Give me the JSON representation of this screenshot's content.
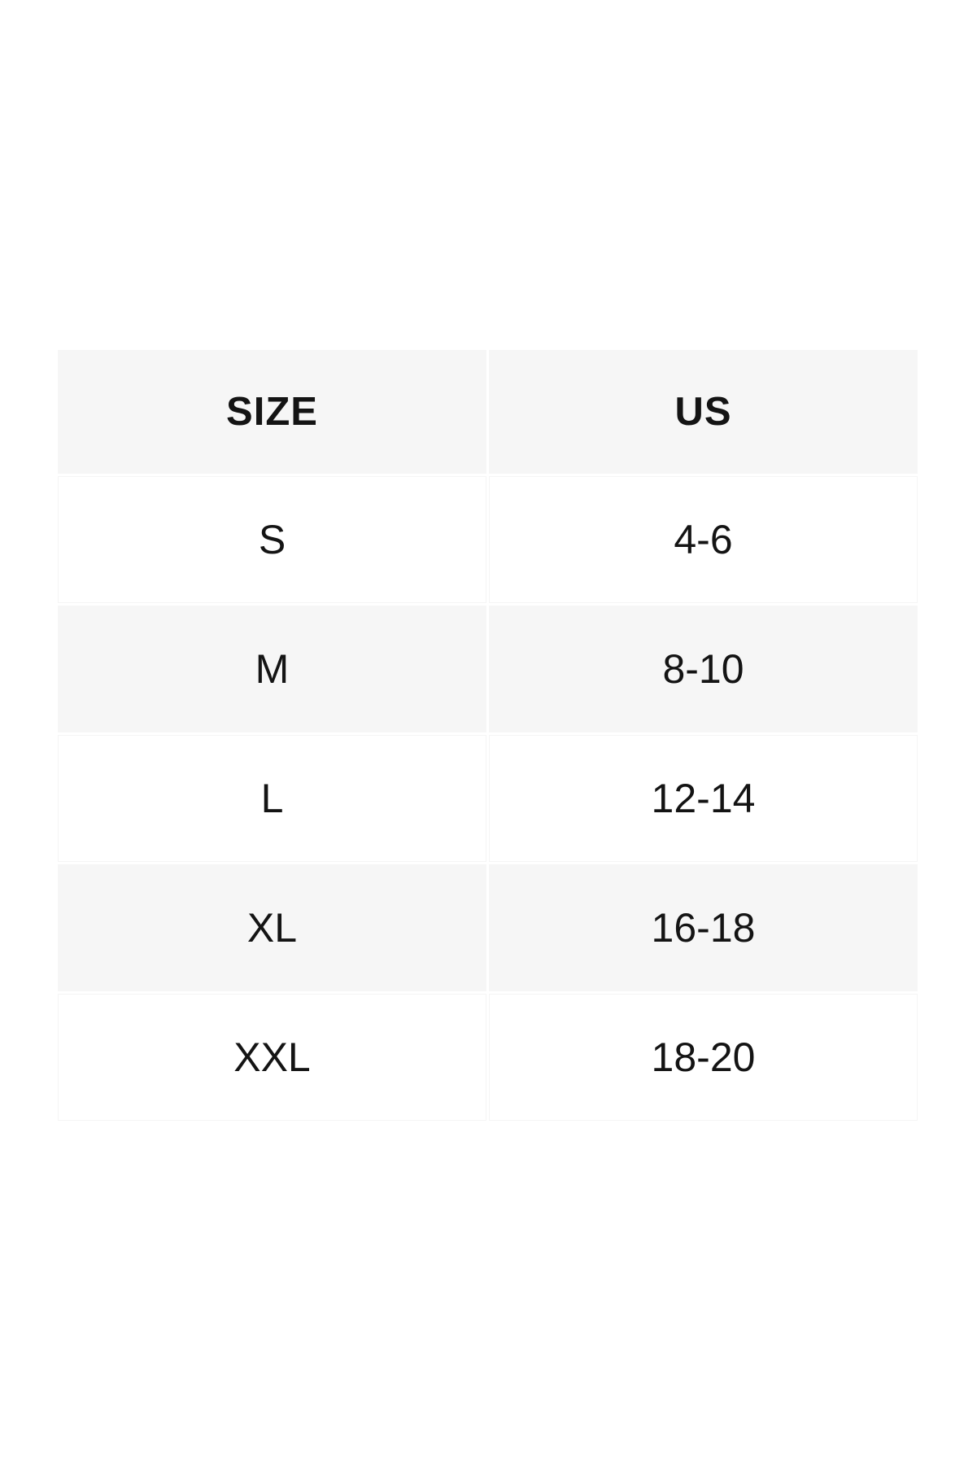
{
  "size_chart": {
    "columns": [
      "SIZE",
      "US"
    ],
    "rows": [
      {
        "size": "S",
        "us": "4-6"
      },
      {
        "size": "M",
        "us": "8-10"
      },
      {
        "size": "L",
        "us": "12-14"
      },
      {
        "size": "XL",
        "us": "16-18"
      },
      {
        "size": "XXL",
        "us": "18-20"
      }
    ]
  },
  "chart_data": {
    "type": "table",
    "columns": [
      "SIZE",
      "US"
    ],
    "rows": [
      [
        "S",
        "4-6"
      ],
      [
        "M",
        "8-10"
      ],
      [
        "L",
        "12-14"
      ],
      [
        "XL",
        "16-18"
      ],
      [
        "XXL",
        "18-20"
      ]
    ]
  },
  "colors": {
    "page_bg": "#ffffff",
    "alt_row_bg": "#f6f6f6",
    "text": "#141414"
  }
}
